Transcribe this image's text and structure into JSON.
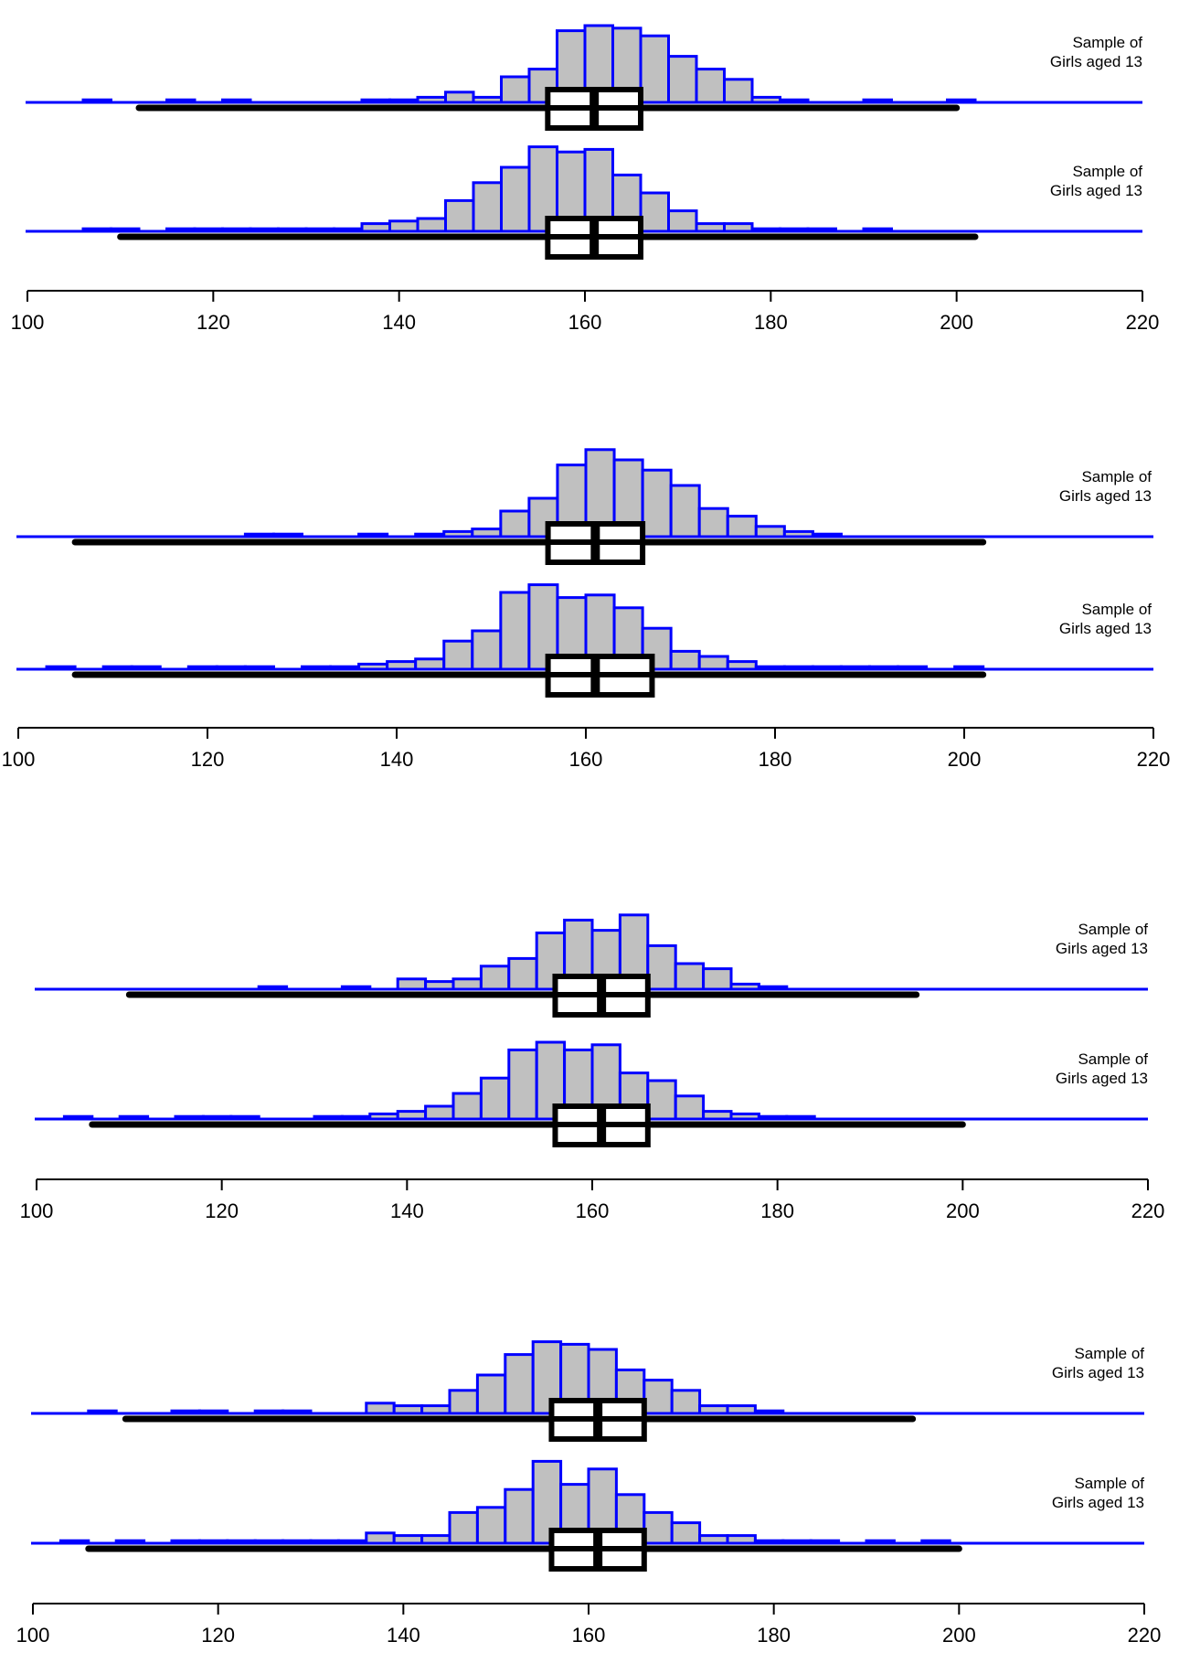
{
  "colors": {
    "hist_fill": "#c0c0c0",
    "hist_stroke": "#0000ff",
    "baseline": "#0000ff",
    "boxplot": "#000000",
    "axis": "#000000",
    "text": "#000000"
  },
  "chart_data": [
    {
      "type": "histogram-boxplot",
      "xlim": [
        100,
        220
      ],
      "x_ticks": [
        100,
        120,
        140,
        160,
        180,
        200,
        220
      ],
      "bin_width": 3,
      "bins_start": 103,
      "samples": [
        {
          "label": [
            "Sample of",
            "Girls aged 13"
          ],
          "counts": [
            0,
            1,
            0,
            0,
            1,
            0,
            1,
            0,
            0,
            0,
            0,
            1,
            1,
            2,
            4,
            2,
            10,
            13,
            28,
            30,
            29,
            26,
            18,
            13,
            9,
            2,
            1,
            0,
            0,
            1,
            0,
            0,
            1,
            0,
            0,
            0,
            0,
            0,
            0,
            0
          ],
          "box": {
            "min": 112,
            "q1": 156,
            "median": 161,
            "q3": 166,
            "max": 200
          }
        },
        {
          "label": [
            "Sample of",
            "Girls aged 13"
          ],
          "counts": [
            0,
            1,
            1,
            0,
            1,
            1,
            1,
            1,
            1,
            1,
            1,
            3,
            4,
            5,
            12,
            19,
            25,
            33,
            31,
            32,
            22,
            15,
            8,
            3,
            3,
            1,
            1,
            1,
            0,
            1,
            0,
            0,
            0,
            0,
            0,
            0,
            0,
            0,
            0,
            0
          ],
          "box": {
            "min": 110,
            "q1": 156,
            "median": 161,
            "q3": 166,
            "max": 202
          }
        }
      ]
    },
    {
      "type": "histogram-boxplot",
      "xlim": [
        100,
        220
      ],
      "x_ticks": [
        100,
        120,
        140,
        160,
        180,
        200,
        220
      ],
      "bin_width": 3,
      "bins_start": 103,
      "samples": [
        {
          "label": [
            "Sample of",
            "Girls aged 13"
          ],
          "counts": [
            0,
            0,
            0,
            0,
            0,
            0,
            0,
            1,
            1,
            0,
            0,
            1,
            0,
            1,
            2,
            3,
            10,
            15,
            28,
            34,
            30,
            26,
            20,
            11,
            8,
            4,
            2,
            1,
            0,
            0,
            0,
            0,
            0,
            0,
            0,
            0,
            0,
            0,
            0,
            0
          ],
          "box": {
            "min": 106,
            "q1": 156,
            "median": 161,
            "q3": 166,
            "max": 202
          }
        },
        {
          "label": [
            "Sample of",
            "Girls aged 13"
          ],
          "counts": [
            1,
            0,
            1,
            1,
            0,
            1,
            1,
            1,
            0,
            1,
            1,
            2,
            3,
            4,
            11,
            15,
            30,
            33,
            28,
            29,
            24,
            16,
            7,
            5,
            3,
            1,
            1,
            1,
            1,
            1,
            1,
            0,
            1,
            0,
            0,
            0,
            0,
            0,
            0,
            0
          ],
          "box": {
            "min": 106,
            "q1": 156,
            "median": 161,
            "q3": 167,
            "max": 202
          }
        }
      ]
    },
    {
      "type": "histogram-boxplot",
      "xlim": [
        100,
        220
      ],
      "x_ticks": [
        100,
        120,
        140,
        160,
        180,
        200,
        220
      ],
      "bin_width": 3,
      "bins_start": 103,
      "samples": [
        {
          "label": [
            "Sample of",
            "Girls aged 13"
          ],
          "counts": [
            0,
            0,
            0,
            0,
            0,
            0,
            0,
            1,
            0,
            0,
            1,
            0,
            4,
            3,
            4,
            9,
            12,
            22,
            27,
            23,
            29,
            17,
            10,
            8,
            2,
            1,
            0,
            0,
            0,
            0,
            0,
            0,
            0,
            0,
            0,
            0,
            0,
            0,
            0,
            0
          ],
          "box": {
            "min": 110,
            "q1": 156,
            "median": 161,
            "q3": 166,
            "max": 195
          }
        },
        {
          "label": [
            "Sample of",
            "Girls aged 13"
          ],
          "counts": [
            1,
            0,
            1,
            0,
            1,
            1,
            1,
            0,
            0,
            1,
            1,
            2,
            3,
            5,
            10,
            16,
            27,
            30,
            27,
            29,
            18,
            15,
            9,
            3,
            2,
            1,
            1,
            0,
            0,
            0,
            0,
            0,
            0,
            0,
            0,
            0,
            0,
            0,
            0,
            0
          ],
          "box": {
            "min": 106,
            "q1": 156,
            "median": 161,
            "q3": 166,
            "max": 200
          }
        }
      ]
    },
    {
      "type": "histogram-boxplot",
      "xlim": [
        100,
        220
      ],
      "x_ticks": [
        100,
        120,
        140,
        160,
        180,
        200,
        220
      ],
      "bin_width": 3,
      "bins_start": 103,
      "samples": [
        {
          "label": [
            "Sample of",
            "Girls aged 13"
          ],
          "counts": [
            0,
            1,
            0,
            0,
            1,
            1,
            0,
            1,
            1,
            0,
            0,
            4,
            3,
            3,
            9,
            15,
            23,
            28,
            27,
            25,
            17,
            13,
            9,
            3,
            3,
            1,
            0,
            0,
            0,
            0,
            0,
            0,
            0,
            0,
            0,
            0,
            0,
            0,
            0,
            0
          ],
          "box": {
            "min": 110,
            "q1": 156,
            "median": 161,
            "q3": 166,
            "max": 195
          }
        },
        {
          "label": [
            "Sample of",
            "Girls aged 13"
          ],
          "counts": [
            1,
            0,
            1,
            0,
            1,
            1,
            1,
            1,
            1,
            1,
            1,
            4,
            3,
            3,
            12,
            14,
            21,
            32,
            23,
            29,
            19,
            12,
            8,
            3,
            3,
            1,
            1,
            1,
            0,
            1,
            0,
            1,
            0,
            0,
            0,
            0,
            0,
            0,
            0,
            0
          ],
          "box": {
            "min": 106,
            "q1": 156,
            "median": 161,
            "q3": 166,
            "max": 200
          }
        }
      ]
    }
  ]
}
